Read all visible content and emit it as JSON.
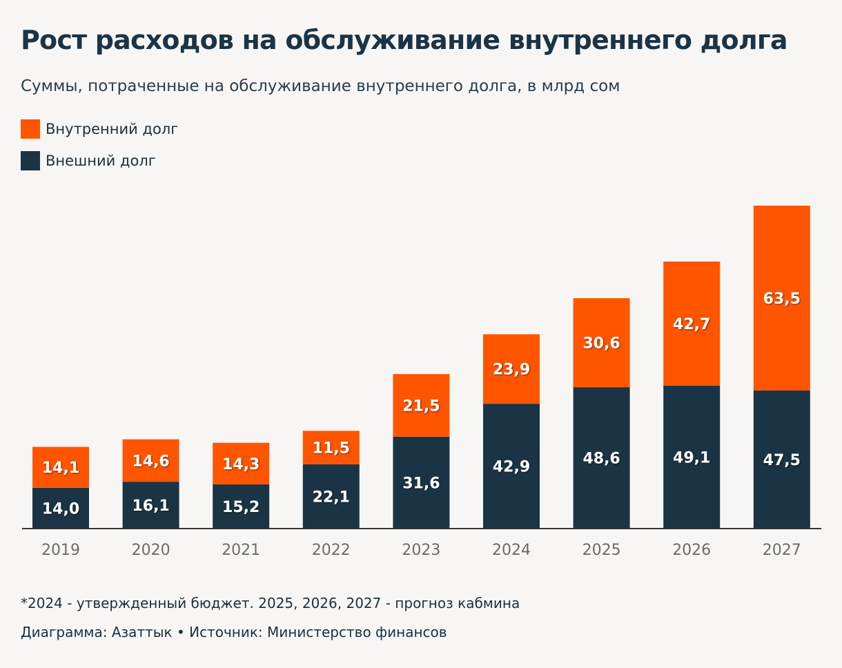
{
  "chart_data": {
    "type": "bar",
    "stacked": true,
    "title": "Рост расходов на обслуживание внутреннего долга",
    "subtitle": "Суммы, потраченные на обслуживание внутреннего долга, в млрд сом",
    "categories": [
      "2019",
      "2020",
      "2021",
      "2022",
      "2023",
      "2024",
      "2025",
      "2026",
      "2027"
    ],
    "series": [
      {
        "name": "Внешний долг",
        "color": "#1b3445",
        "values": [
          14.0,
          16.1,
          15.2,
          22.1,
          31.6,
          42.9,
          48.6,
          49.1,
          47.5
        ],
        "labels": [
          "14,0",
          "16,1",
          "15,2",
          "22,1",
          "31,6",
          "42,9",
          "48,6",
          "49,1",
          "47,5"
        ]
      },
      {
        "name": "Внутренний долг",
        "color": "#ff5500",
        "values": [
          14.1,
          14.6,
          14.3,
          11.5,
          21.5,
          23.9,
          30.6,
          42.7,
          63.5
        ],
        "labels": [
          "14,1",
          "14,6",
          "14,3",
          "11,5",
          "21,5",
          "23,9",
          "30,6",
          "42,7",
          "63,5"
        ]
      }
    ],
    "legend": [
      {
        "label": "Внутренний долг",
        "color": "#ff5500"
      },
      {
        "label": "Внешний долг",
        "color": "#1b3445"
      }
    ],
    "ylim": [
      0,
      115
    ],
    "grid": false,
    "xlabel": "",
    "ylabel": ""
  },
  "footer": {
    "note": "*2024 - утвержденный бюджет. 2025, 2026, 2027 - прогноз кабмина",
    "credit": "Диаграмма: Азаттык • Источник: Министерство финансов"
  }
}
